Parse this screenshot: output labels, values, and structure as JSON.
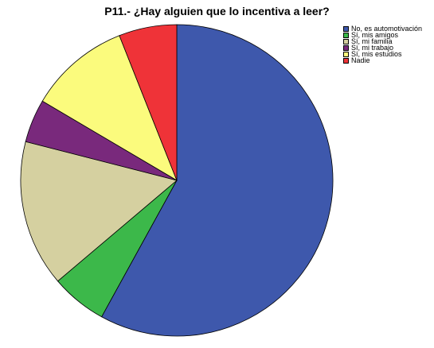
{
  "chart_data": {
    "type": "pie",
    "title": "P11.- ¿Hay alguien que lo incentiva a leer?",
    "categories": [
      "No, es automotivación",
      "Sí, mis amigos",
      "Sí, mi familia",
      "Sí, mi trabajo",
      "Sí, mis estudios",
      "Nadie"
    ],
    "values": [
      58.0,
      5.8,
      15.2,
      4.5,
      10.5,
      6.0
    ],
    "colors": [
      "#3E58AC",
      "#3CB84A",
      "#D5D0A0",
      "#79297C",
      "#FBFB7D",
      "#EF3338"
    ],
    "start_angle_deg": 0,
    "direction": "clockwise",
    "legend_position": "top-right"
  }
}
